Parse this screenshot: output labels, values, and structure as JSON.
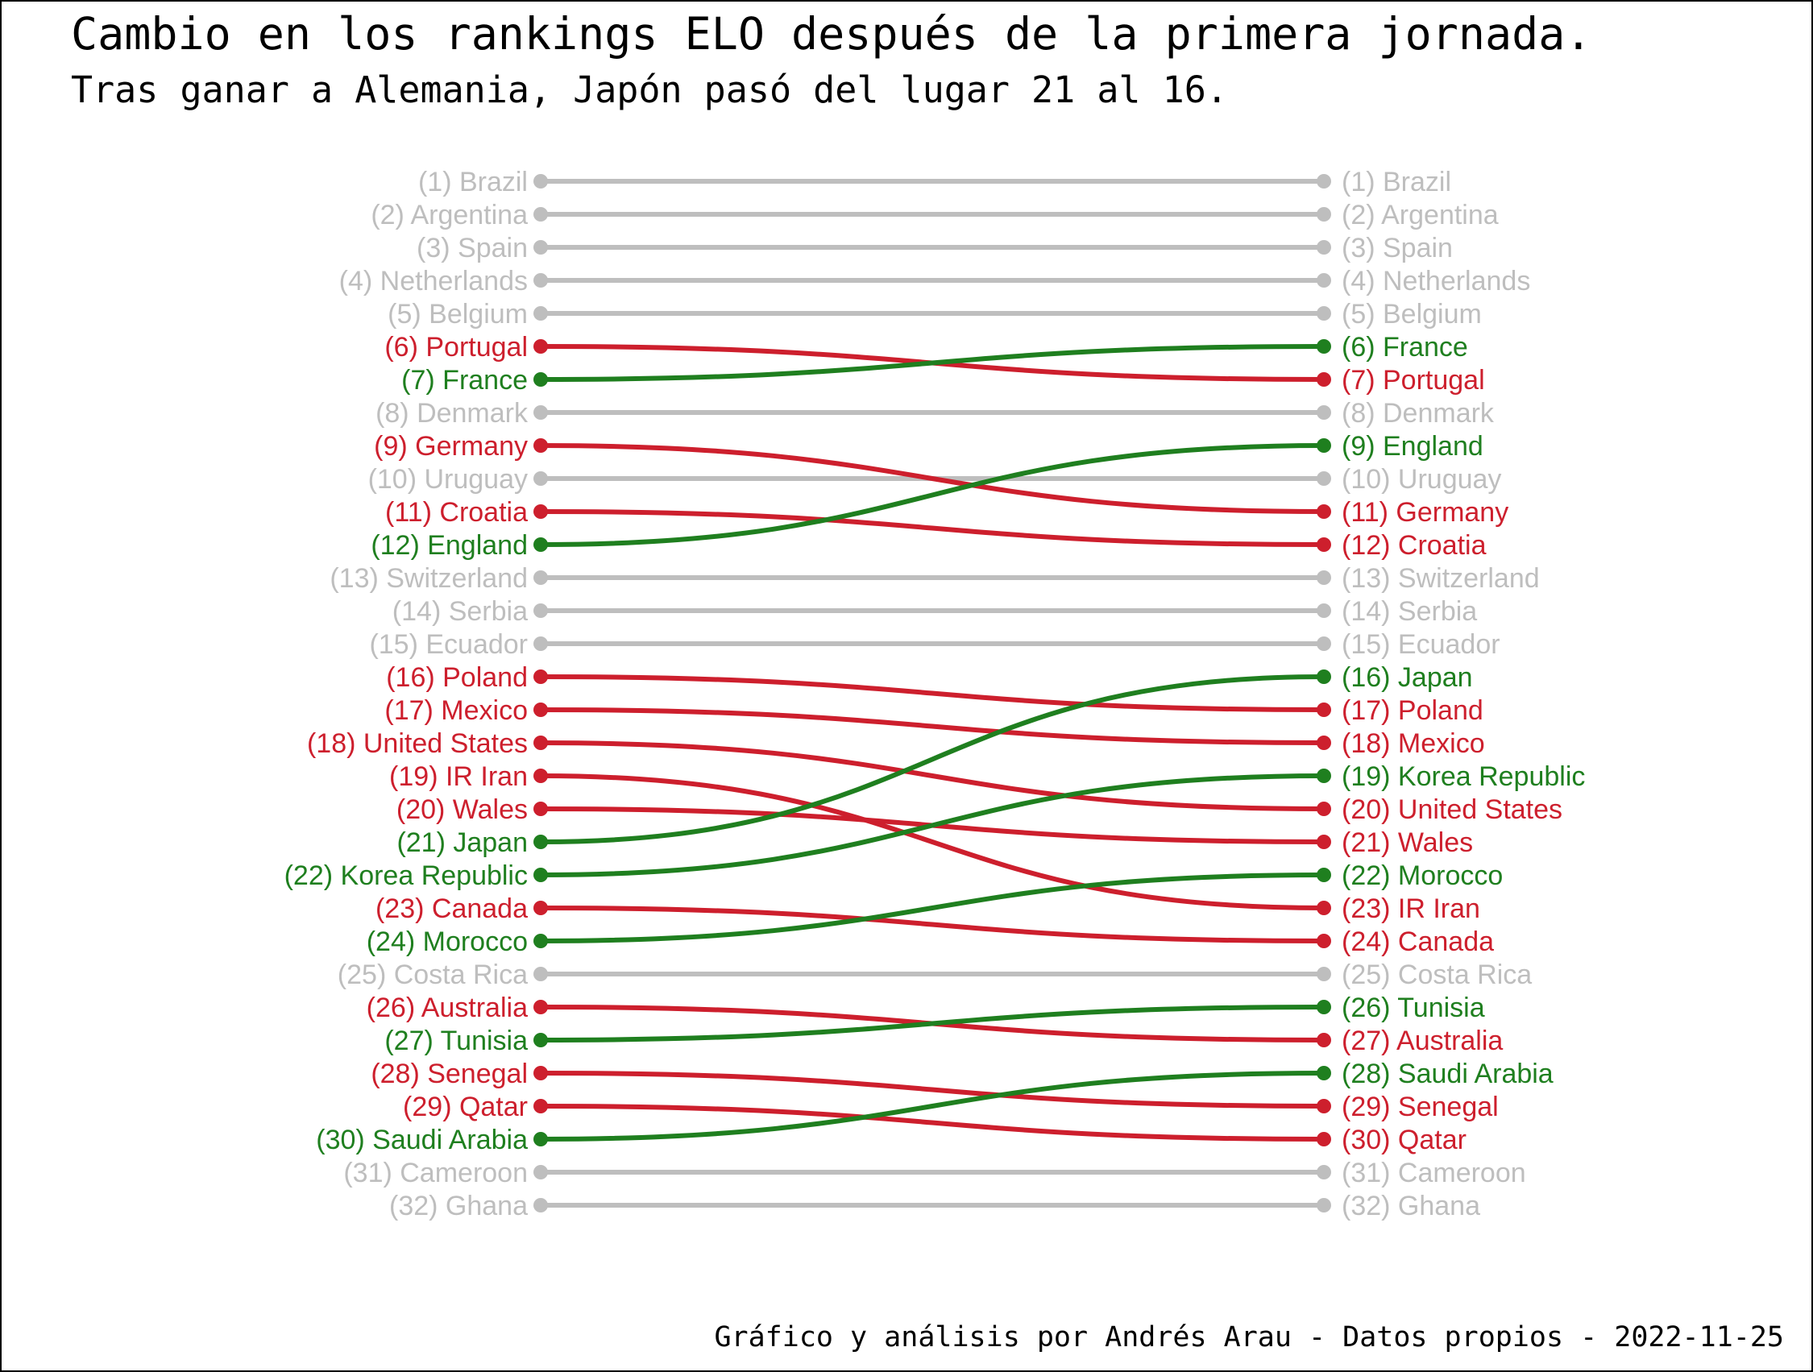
{
  "title": "Cambio en los rankings ELO después de la primera jornada.",
  "subtitle": "Tras ganar a Alemania, Japón pasó del lugar 21 al 16.",
  "caption": "Gráfico y análisis por Andrés Arau - Datos propios - 2022-11-25",
  "colors": {
    "same": "#BEBEBE",
    "down": "#CD1F2D",
    "up": "#1F7F1F"
  },
  "chart_data": {
    "type": "slope",
    "title": "Cambio en los rankings ELO después de la primera jornada.",
    "subtitle": "Tras ganar a Alemania, Japón pasó del lugar 21 al 16.",
    "rank_range": [
      1,
      32
    ],
    "teams": [
      {
        "name": "Brazil",
        "before": 1,
        "after": 1
      },
      {
        "name": "Argentina",
        "before": 2,
        "after": 2
      },
      {
        "name": "Spain",
        "before": 3,
        "after": 3
      },
      {
        "name": "Netherlands",
        "before": 4,
        "after": 4
      },
      {
        "name": "Belgium",
        "before": 5,
        "after": 5
      },
      {
        "name": "Portugal",
        "before": 6,
        "after": 7
      },
      {
        "name": "France",
        "before": 7,
        "after": 6
      },
      {
        "name": "Denmark",
        "before": 8,
        "after": 8
      },
      {
        "name": "Germany",
        "before": 9,
        "after": 11
      },
      {
        "name": "Uruguay",
        "before": 10,
        "after": 10
      },
      {
        "name": "Croatia",
        "before": 11,
        "after": 12
      },
      {
        "name": "England",
        "before": 12,
        "after": 9
      },
      {
        "name": "Switzerland",
        "before": 13,
        "after": 13
      },
      {
        "name": "Serbia",
        "before": 14,
        "after": 14
      },
      {
        "name": "Ecuador",
        "before": 15,
        "after": 15
      },
      {
        "name": "Poland",
        "before": 16,
        "after": 17
      },
      {
        "name": "Mexico",
        "before": 17,
        "after": 18
      },
      {
        "name": "United States",
        "before": 18,
        "after": 20
      },
      {
        "name": "IR Iran",
        "before": 19,
        "after": 23
      },
      {
        "name": "Wales",
        "before": 20,
        "after": 21
      },
      {
        "name": "Japan",
        "before": 21,
        "after": 16
      },
      {
        "name": "Korea Republic",
        "before": 22,
        "after": 19
      },
      {
        "name": "Canada",
        "before": 23,
        "after": 24
      },
      {
        "name": "Morocco",
        "before": 24,
        "after": 22
      },
      {
        "name": "Costa Rica",
        "before": 25,
        "after": 25
      },
      {
        "name": "Australia",
        "before": 26,
        "after": 27
      },
      {
        "name": "Tunisia",
        "before": 27,
        "after": 26
      },
      {
        "name": "Senegal",
        "before": 28,
        "after": 29
      },
      {
        "name": "Qatar",
        "before": 29,
        "after": 30
      },
      {
        "name": "Saudi Arabia",
        "before": 30,
        "after": 28
      },
      {
        "name": "Cameroon",
        "before": 31,
        "after": 31
      },
      {
        "name": "Ghana",
        "before": 32,
        "after": 32
      }
    ]
  }
}
